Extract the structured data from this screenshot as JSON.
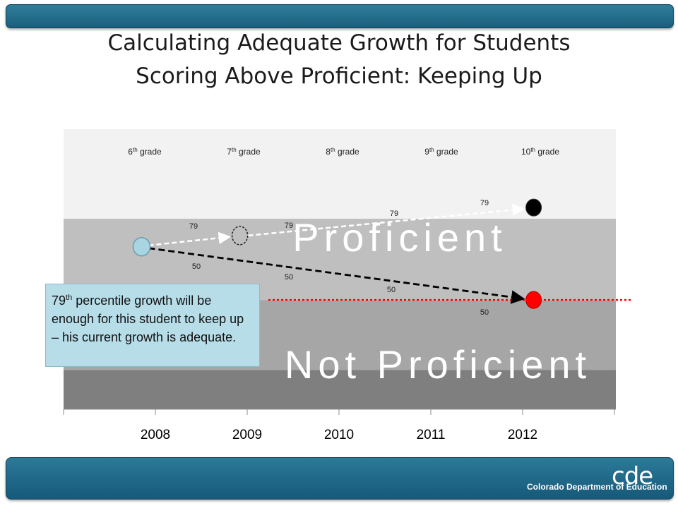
{
  "slide": {
    "title_line1": "Calculating Adequate Growth for Students",
    "title_line2": "Scoring Above Proficient: Keeping Up"
  },
  "callout": {
    "pct_number": "79",
    "pct_suffix": "th",
    "text": "percentile growth will be enough for this student to keep up – his current growth is adequate."
  },
  "logo": {
    "mark": "cde",
    "text": "Colorado Department of Education"
  },
  "colors": {
    "advanced_band": "#f2f2f2",
    "proficient_band": "#bfbfbf",
    "partial_band": "#a6a6a6",
    "unsatisfactory_band": "#7f7f7f",
    "start_point": "#a9d4e1",
    "proficient_target": "#000000",
    "cut_target": "#ff0000",
    "cut_line": "#ff0000"
  },
  "chart_data": {
    "type": "line",
    "x_categories": [
      "2008",
      "2009",
      "2010",
      "2011",
      "2012"
    ],
    "grade_labels": [
      {
        "num": "6",
        "sup": "th",
        "rest": "grade"
      },
      {
        "num": "7",
        "sup": "th",
        "rest": "grade"
      },
      {
        "num": "8",
        "sup": "th",
        "rest": "grade"
      },
      {
        "num": "9",
        "sup": "th",
        "rest": "grade"
      },
      {
        "num": "10",
        "sup": "th",
        "rest": "grade"
      }
    ],
    "band_labels": {
      "proficient": "Proficient",
      "not_proficient": "Not Proficient"
    },
    "bands": [
      {
        "name": "top",
        "from": 0.0,
        "to": 0.32
      },
      {
        "name": "proficient",
        "from": 0.32,
        "to": 0.61
      },
      {
        "name": "mid",
        "from": 0.61,
        "to": 0.86
      },
      {
        "name": "low",
        "from": 0.86,
        "to": 1.0
      }
    ],
    "start_point": {
      "x": 2007.85,
      "level": 0.42
    },
    "series": [
      {
        "growth_percentile": "79",
        "waypoint": {
          "x": 2008.92,
          "level": 0.38
        },
        "end": {
          "x": 2012.12,
          "level": 0.28
        },
        "labels": [
          "79",
          "79",
          "79",
          "79"
        ]
      },
      {
        "growth_percentile": "50",
        "end": {
          "x": 2012.12,
          "level": 0.61
        },
        "labels": [
          "50",
          "50",
          "50",
          "50"
        ]
      }
    ],
    "cut_line_level": 0.61
  }
}
